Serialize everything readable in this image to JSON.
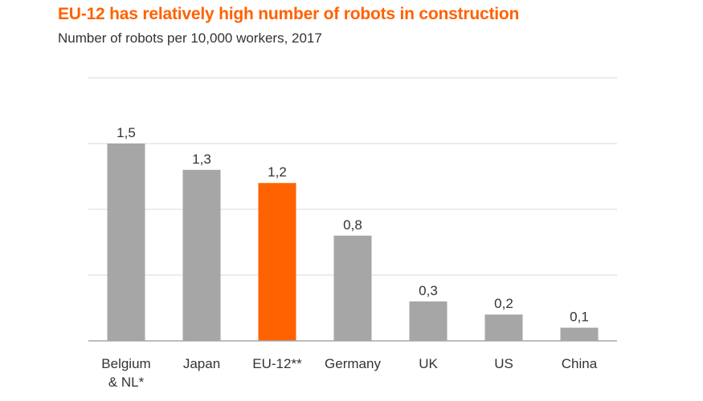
{
  "header": {
    "title": "EU-12 has relatively high number of robots in construction",
    "subtitle": "Number of robots per 10,000 workers, 2017"
  },
  "chart_data": {
    "type": "bar",
    "categories": [
      [
        "Belgium",
        "& NL*"
      ],
      [
        "Japan"
      ],
      [
        "EU-12**"
      ],
      [
        "Germany"
      ],
      [
        "UK"
      ],
      [
        "US"
      ],
      [
        "China"
      ]
    ],
    "values": [
      1.5,
      1.3,
      1.2,
      0.8,
      0.3,
      0.2,
      0.1
    ],
    "value_labels": [
      "1,5",
      "1,3",
      "1,2",
      "0,8",
      "0,3",
      "0,2",
      "0,1"
    ],
    "highlight_index": 2,
    "colors": {
      "default": "#a6a6a6",
      "highlight": "#ff6200",
      "grid": "#d9d9d9",
      "axis": "#a6a6a6"
    },
    "ylim": [
      0,
      2
    ],
    "grid": true,
    "gridlines": [
      0.5,
      1.0,
      1.5,
      2.0
    ]
  }
}
